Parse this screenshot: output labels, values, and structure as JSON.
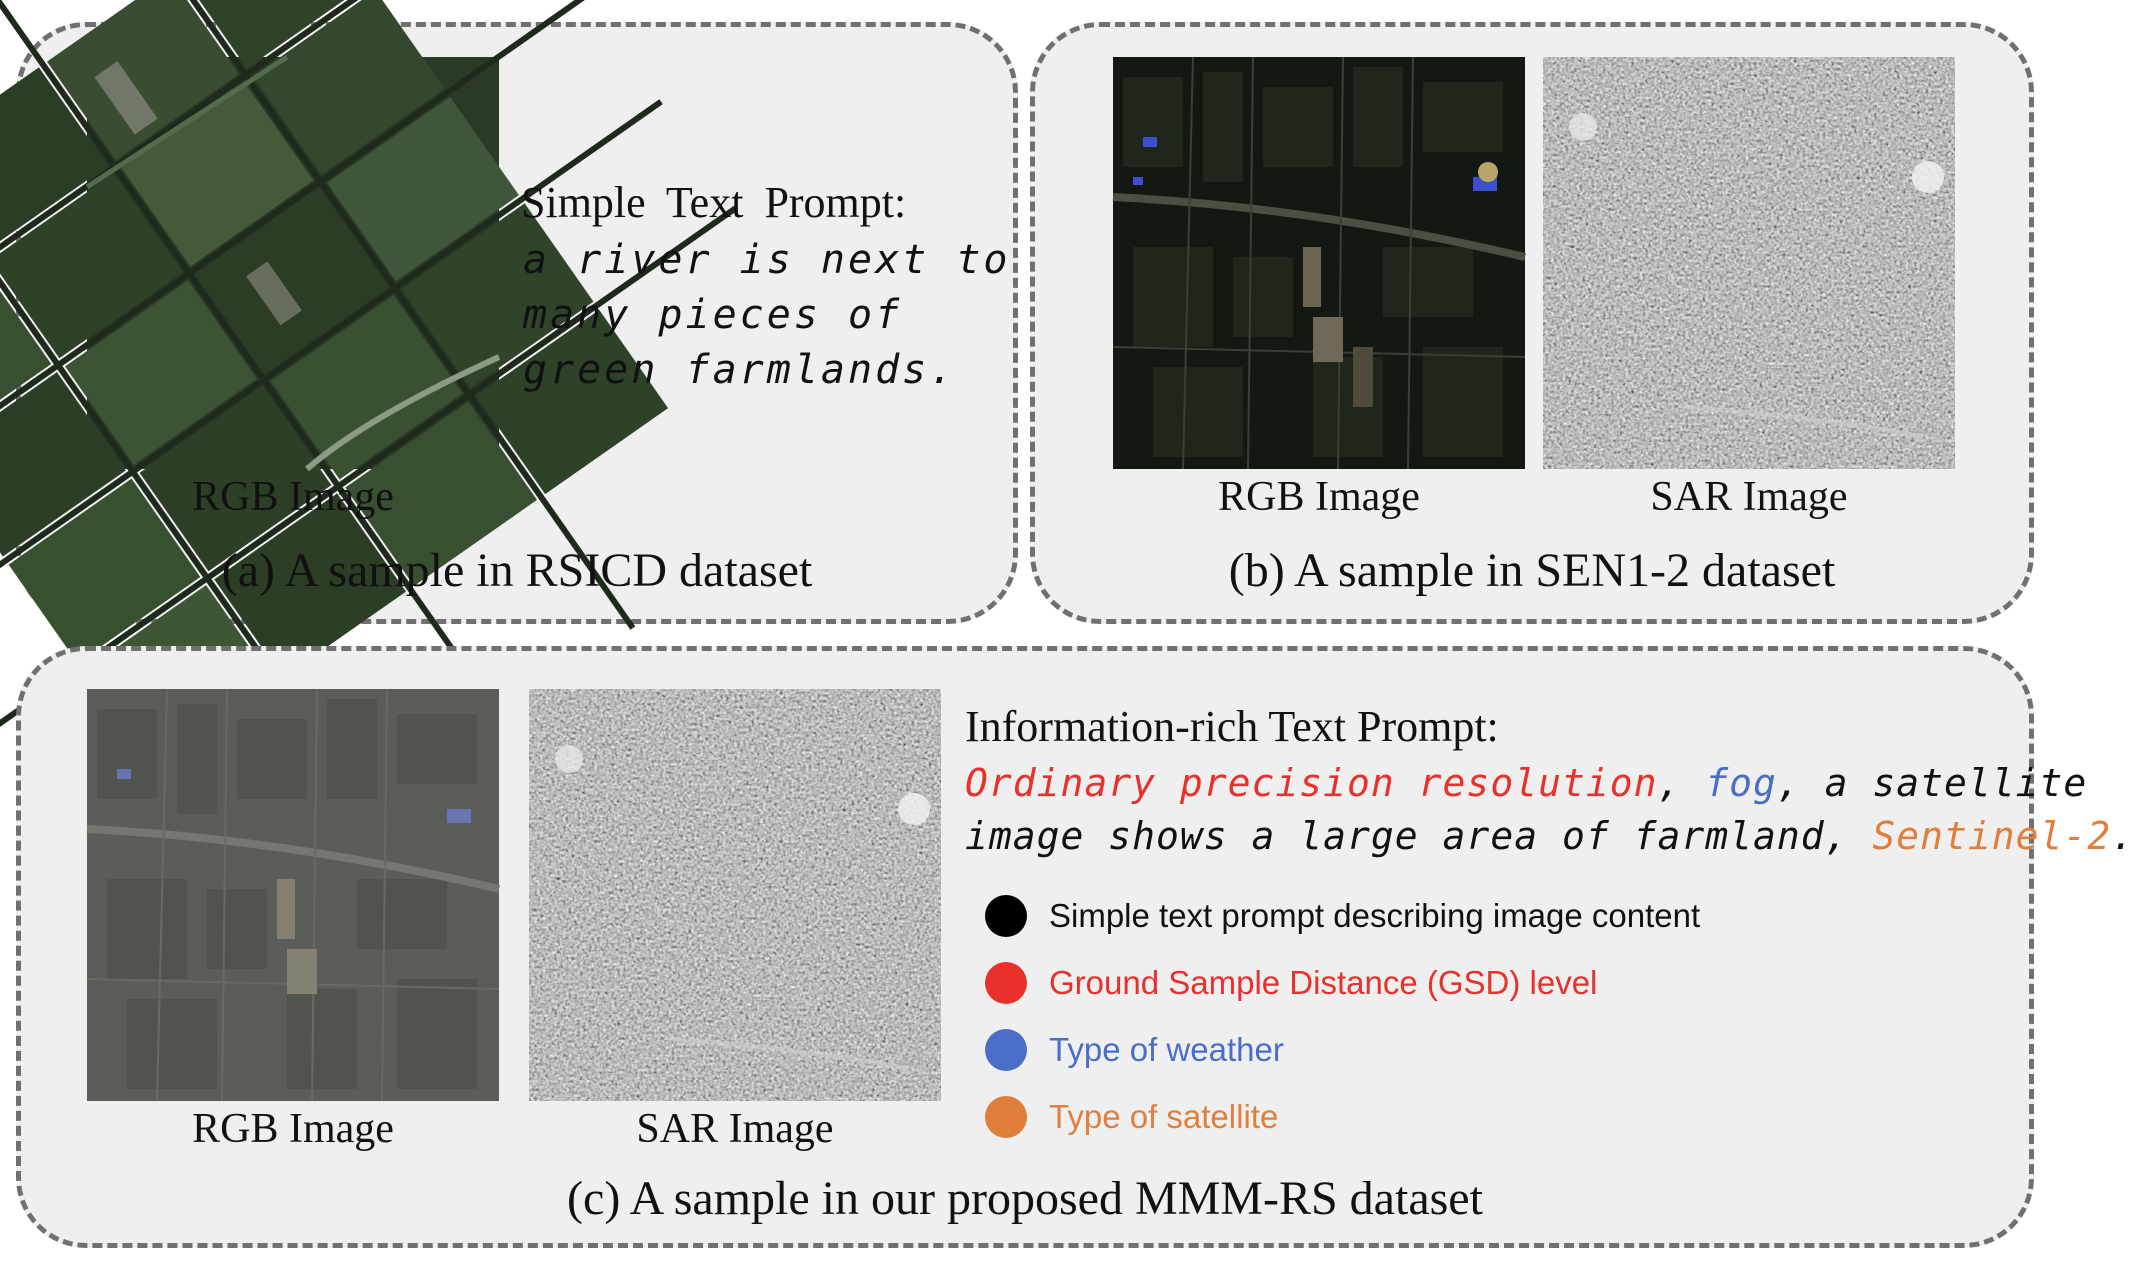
{
  "panel_a": {
    "rgb_label": "RGB Image",
    "prompt_title": "Simple Text Prompt:",
    "prompt_lines": [
      "a river is next to",
      "many pieces of",
      "green farmlands."
    ],
    "caption": "(a) A sample in RSICD dataset"
  },
  "panel_b": {
    "rgb_label": "RGB Image",
    "sar_label": "SAR Image",
    "caption": "(b) A sample in SEN1-2 dataset"
  },
  "panel_c": {
    "rgb_label": "RGB Image",
    "sar_label": "SAR Image",
    "prompt_title": "Information-rich Text Prompt:",
    "prompt_line1": {
      "gsd": "Ordinary precision resolution",
      "sep1": ", ",
      "weather": "fog",
      "rest": ", a satellite"
    },
    "prompt_line2": {
      "text": "image shows a large area of farmland, ",
      "satellite": "Sentinel-2",
      "end": "."
    },
    "legend": [
      {
        "label": "Simple text prompt describing image content",
        "color": "#000000"
      },
      {
        "label": "Ground Sample Distance (GSD) level",
        "color": "#e8312a"
      },
      {
        "label": "Type of weather",
        "color": "#4a6ec8"
      },
      {
        "label": "Type of satellite",
        "color": "#e07f3c"
      }
    ],
    "caption": "(c) A sample in our proposed MMM-RS dataset"
  },
  "colors": {
    "gsd": "#e8312a",
    "weather": "#4a6ec8",
    "satellite": "#e07f3c",
    "panel_bg": "#efefef",
    "border": "#707070"
  }
}
